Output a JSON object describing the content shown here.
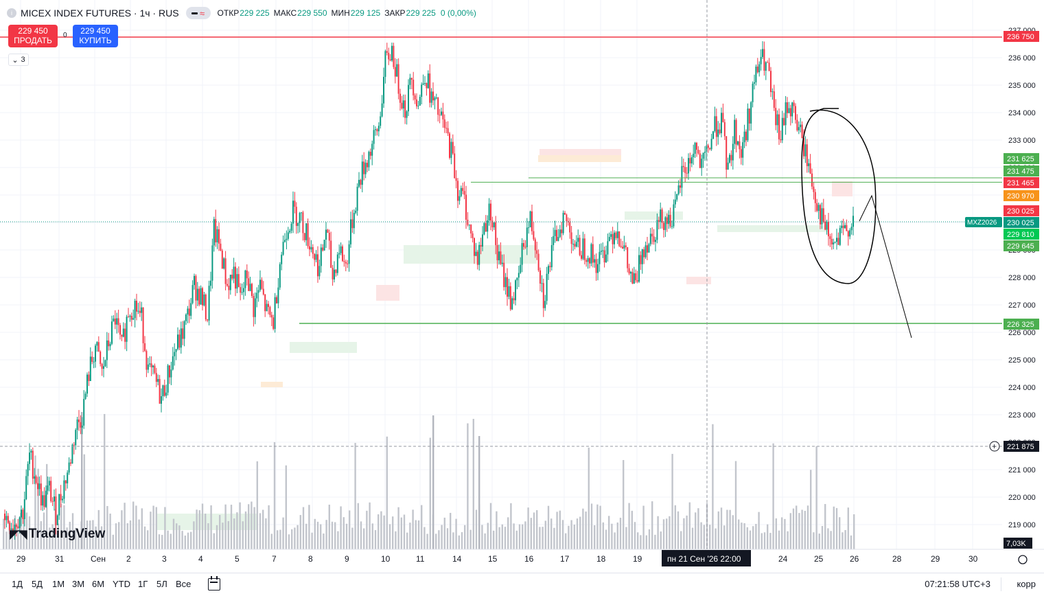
{
  "header": {
    "symbol": "MICEX INDEX FUTURES · 1ч · RUS",
    "ohlc": {
      "open_label": "ОТКР",
      "open": "229 225",
      "high_label": "МАКС",
      "high": "229 550",
      "low_label": "МИН",
      "low": "229 125",
      "close_label": "ЗАКР",
      "close": "229 225",
      "change": "0 (0,00%)"
    }
  },
  "trade": {
    "sell_price": "229 450",
    "sell_label": "ПРОДАТЬ",
    "spread": "0",
    "buy_price": "229 450",
    "buy_label": "КУПИТЬ"
  },
  "indicators": {
    "count": "3"
  },
  "logo": "TradingView",
  "colors": {
    "up": "#089981",
    "down": "#f23645",
    "accent": "#2962ff",
    "level_red": "#f23645",
    "level_green": "#4caf50",
    "orange": "#f7931a"
  },
  "chart_data": {
    "type": "candlestick",
    "symbol_tag": "MXZ2026",
    "y_axis_ticks": [
      237000,
      236000,
      235000,
      234000,
      233000,
      232000,
      231000,
      230000,
      229000,
      228000,
      227000,
      226000,
      225000,
      224000,
      223000,
      222000,
      221000,
      220000,
      219000
    ],
    "y_axis_labels": [
      "237 000",
      "236 000",
      "235 000",
      "234 000",
      "233 000",
      "232 000",
      "231 000",
      "230 000",
      "229 000",
      "228 000",
      "227 000",
      "226 000",
      "225 000",
      "224 000",
      "223 000",
      "222 000",
      "221 000",
      "220 000",
      "219 000"
    ],
    "x_axis_labels": [
      "29",
      "31",
      "Сен",
      "2",
      "3",
      "4",
      "5",
      "7",
      "8",
      "9",
      "10",
      "11",
      "14",
      "15",
      "16",
      "17",
      "18",
      "19",
      "24",
      "25",
      "26",
      "28",
      "29",
      "30"
    ],
    "crosshair_time_label": "пн 21 Сен '26  22:00",
    "crosshair_price_label": "221 875",
    "volume_label": "7,03K",
    "price_tags": [
      {
        "value": 236750,
        "text": "236 750",
        "color": "#f23645"
      },
      {
        "value": 231625,
        "text": "231 625",
        "color": "#4caf50"
      },
      {
        "value": 231475,
        "text": "231 475",
        "color": "#4caf50"
      },
      {
        "value": 231465,
        "text": "231 465",
        "color": "#f23645"
      },
      {
        "value": 230970,
        "text": "230 970",
        "color": "#f7931a"
      },
      {
        "value": 230025,
        "text": "230 025",
        "color": "#f23645"
      },
      {
        "value": 230025,
        "text": "230 025",
        "color": "#089981"
      },
      {
        "value": 229810,
        "text": "229 810",
        "color": "#00c853"
      },
      {
        "value": 229645,
        "text": "229 645",
        "color": "#4caf50"
      },
      {
        "value": 226325,
        "text": "226 325",
        "color": "#4caf50"
      }
    ],
    "horizontal_levels": [
      236750,
      231465,
      231625,
      226325
    ],
    "last_price": 230025,
    "close_path": [
      [
        0,
        219400
      ],
      [
        6,
        219000
      ],
      [
        12,
        219500
      ],
      [
        16,
        221500
      ],
      [
        20,
        220700
      ],
      [
        24,
        219800
      ],
      [
        28,
        220300
      ],
      [
        32,
        219400
      ],
      [
        36,
        220300
      ],
      [
        40,
        221100
      ],
      [
        44,
        222500
      ],
      [
        48,
        223000
      ],
      [
        52,
        224500
      ],
      [
        56,
        225500
      ],
      [
        60,
        224500
      ],
      [
        64,
        225600
      ],
      [
        68,
        226500
      ],
      [
        72,
        225400
      ],
      [
        76,
        226800
      ],
      [
        80,
        227000
      ],
      [
        84,
        226500
      ],
      [
        88,
        224600
      ],
      [
        92,
        224300
      ],
      [
        96,
        223600
      ],
      [
        100,
        224400
      ],
      [
        104,
        225300
      ],
      [
        108,
        225800
      ],
      [
        112,
        226600
      ],
      [
        116,
        227700
      ],
      [
        120,
        227300
      ],
      [
        124,
        226600
      ],
      [
        128,
        229700
      ],
      [
        132,
        229000
      ],
      [
        136,
        227700
      ],
      [
        140,
        228200
      ],
      [
        144,
        227200
      ],
      [
        148,
        228100
      ],
      [
        152,
        226900
      ],
      [
        156,
        227700
      ],
      [
        160,
        226700
      ],
      [
        164,
        226400
      ],
      [
        168,
        228600
      ],
      [
        172,
        229800
      ],
      [
        176,
        230400
      ],
      [
        180,
        230200
      ],
      [
        184,
        229600
      ],
      [
        188,
        229000
      ],
      [
        192,
        228300
      ],
      [
        196,
        229800
      ],
      [
        200,
        228000
      ],
      [
        204,
        229100
      ],
      [
        208,
        228400
      ],
      [
        212,
        230100
      ],
      [
        216,
        231500
      ],
      [
        220,
        232200
      ],
      [
        224,
        232800
      ],
      [
        228,
        233500
      ],
      [
        232,
        235800
      ],
      [
        236,
        236300
      ],
      [
        240,
        235000
      ],
      [
        244,
        234100
      ],
      [
        248,
        235300
      ],
      [
        252,
        234300
      ],
      [
        256,
        235500
      ],
      [
        260,
        234500
      ],
      [
        264,
        234000
      ],
      [
        268,
        233400
      ],
      [
        272,
        232600
      ],
      [
        276,
        231200
      ],
      [
        280,
        230800
      ],
      [
        284,
        229500
      ],
      [
        288,
        228600
      ],
      [
        292,
        229900
      ],
      [
        296,
        230500
      ],
      [
        300,
        228800
      ],
      [
        304,
        228000
      ],
      [
        308,
        227200
      ],
      [
        312,
        227600
      ],
      [
        316,
        229300
      ],
      [
        320,
        230100
      ],
      [
        324,
        229100
      ],
      [
        328,
        227200
      ],
      [
        332,
        228600
      ],
      [
        336,
        229600
      ],
      [
        340,
        230200
      ],
      [
        344,
        229800
      ],
      [
        348,
        229000
      ],
      [
        352,
        229100
      ],
      [
        356,
        228900
      ],
      [
        360,
        228500
      ],
      [
        364,
        228800
      ],
      [
        368,
        229500
      ],
      [
        372,
        229800
      ],
      [
        376,
        229300
      ],
      [
        380,
        228100
      ],
      [
        384,
        227700
      ],
      [
        388,
        229100
      ],
      [
        392,
        229400
      ],
      [
        396,
        229800
      ],
      [
        400,
        230200
      ],
      [
        404,
        230100
      ],
      [
        408,
        230400
      ],
      [
        412,
        231800
      ],
      [
        416,
        232100
      ],
      [
        420,
        232800
      ],
      [
        424,
        231900
      ],
      [
        428,
        232700
      ],
      [
        432,
        233500
      ],
      [
        436,
        233700
      ],
      [
        440,
        231800
      ],
      [
        444,
        233400
      ],
      [
        448,
        232500
      ],
      [
        452,
        233700
      ],
      [
        456,
        235100
      ],
      [
        460,
        236000
      ],
      [
        464,
        235600
      ],
      [
        468,
        233900
      ],
      [
        472,
        233100
      ],
      [
        476,
        234300
      ],
      [
        480,
        234000
      ],
      [
        484,
        233200
      ],
      [
        488,
        232300
      ],
      [
        492,
        231200
      ],
      [
        496,
        230300
      ],
      [
        500,
        229600
      ],
      [
        504,
        229100
      ],
      [
        508,
        229400
      ],
      [
        512,
        229800
      ],
      [
        516,
        230100
      ]
    ],
    "x_index_range": [
      0,
      650
    ]
  }
}
